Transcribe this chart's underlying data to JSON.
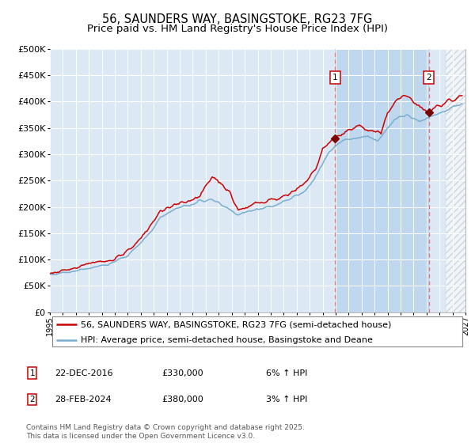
{
  "title": "56, SAUNDERS WAY, BASINGSTOKE, RG23 7FG",
  "subtitle": "Price paid vs. HM Land Registry's House Price Index (HPI)",
  "legend_line1": "56, SAUNDERS WAY, BASINGSTOKE, RG23 7FG (semi-detached house)",
  "legend_line2": "HPI: Average price, semi-detached house, Basingstoke and Deane",
  "annotation1_label": "1",
  "annotation1_date": "22-DEC-2016",
  "annotation1_price": "£330,000",
  "annotation1_hpi": "6% ↑ HPI",
  "annotation2_label": "2",
  "annotation2_date": "28-FEB-2024",
  "annotation2_price": "£380,000",
  "annotation2_hpi": "3% ↑ HPI",
  "footer": "Contains HM Land Registry data © Crown copyright and database right 2025.\nThis data is licensed under the Open Government Licence v3.0.",
  "xmin": 1995,
  "xmax": 2027,
  "ymin": 0,
  "ymax": 500000,
  "sale1_year": 2016.97,
  "sale1_value": 330000,
  "sale2_year": 2024.17,
  "sale2_value": 380000,
  "red_line_color": "#cc0000",
  "blue_line_color": "#7aadcf",
  "background_color": "#ffffff",
  "plot_bg_color": "#dce9f5",
  "shaded_region_color": "#c0d8ef",
  "grid_color": "#ffffff",
  "annotation_box_color": "#cc0000",
  "title_fontsize": 10.5,
  "subtitle_fontsize": 9.5,
  "axis_fontsize": 8,
  "legend_fontsize": 8,
  "footer_fontsize": 6.5
}
